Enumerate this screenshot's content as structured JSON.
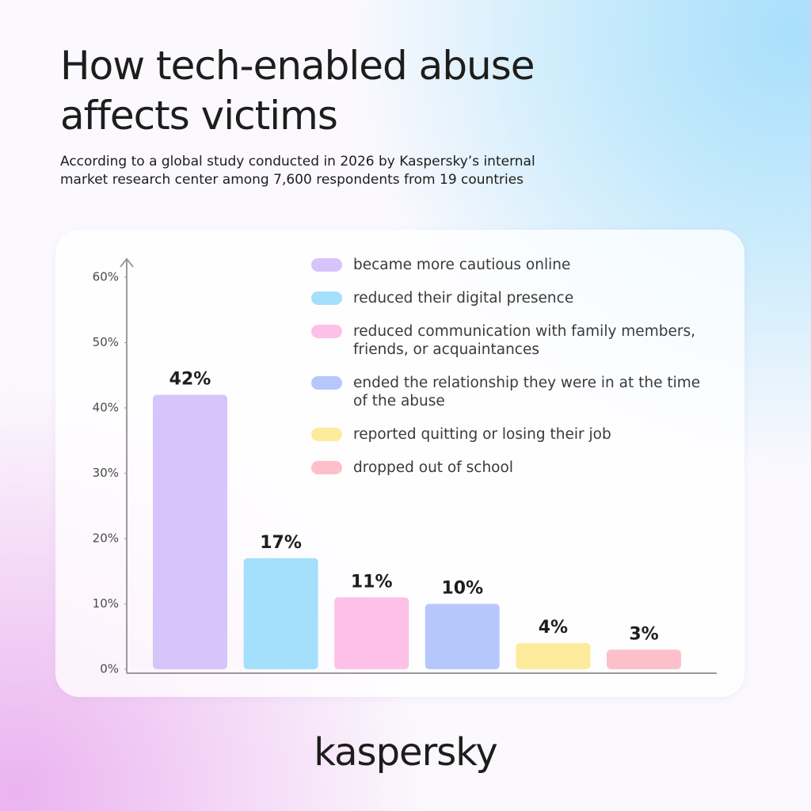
{
  "title": "How tech-enabled abuse affects victims",
  "subtitle": "According to a global study conducted in 2026 by Kaspersky’s internal market research center among 7,600 respondents from 19 countries",
  "brand": "kaspersky",
  "chart_data": {
    "type": "bar",
    "categories": [
      "became more cautious online",
      "reduced their digital presence",
      "reduced communication with family members, friends, or acquaintances",
      "ended the relationship they were in at the time of the abuse",
      "reported quitting or losing their job",
      "dropped out of school"
    ],
    "values": [
      42,
      17,
      11,
      10,
      4,
      3
    ],
    "value_labels": [
      "42%",
      "17%",
      "11%",
      "10%",
      "4%",
      "3%"
    ],
    "colors": [
      "#d6c4fb",
      "#a4e0fb",
      "#fdc0e6",
      "#b6c8fb",
      "#fdeb9c",
      "#fdc0cb"
    ],
    "ylim": [
      0,
      60
    ],
    "yticks": [
      {
        "value": 0,
        "label": "0%"
      },
      {
        "value": 10,
        "label": "10%"
      },
      {
        "value": 20,
        "label": "20%"
      },
      {
        "value": 30,
        "label": "30%"
      },
      {
        "value": 40,
        "label": "40%"
      },
      {
        "value": 50,
        "label": "50%"
      },
      {
        "value": 60,
        "label": "60%"
      }
    ],
    "legend": "top-right"
  }
}
